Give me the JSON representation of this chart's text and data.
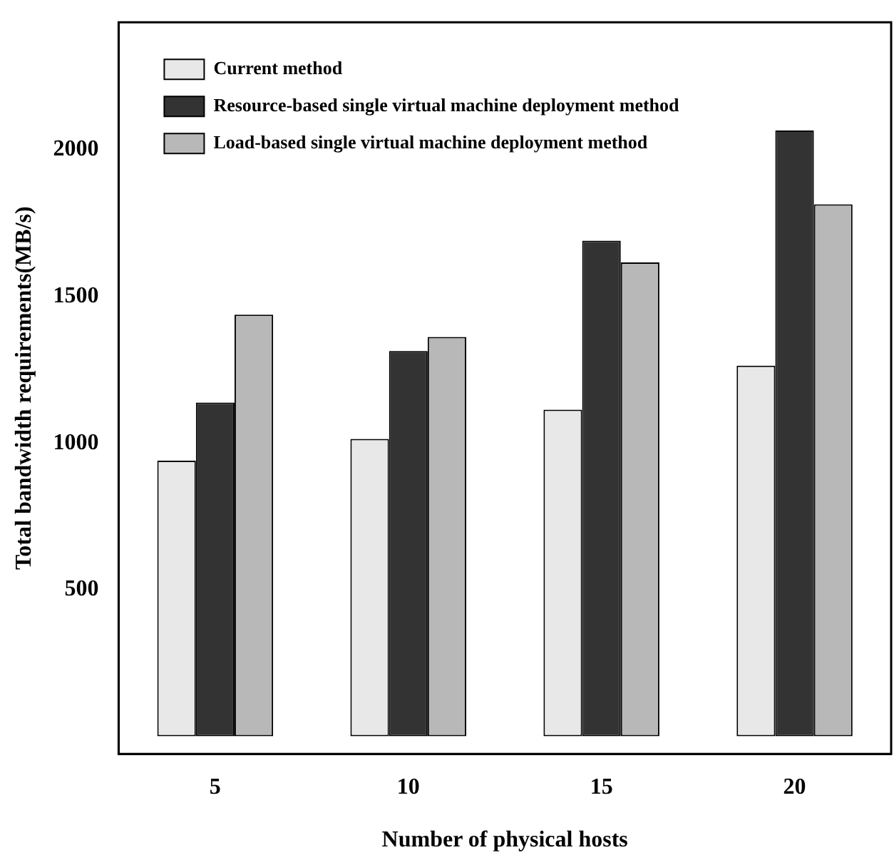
{
  "chart_data": {
    "type": "bar",
    "xlabel": "Number of physical hosts",
    "ylabel": "Total bandwidth requirements(MB/s)",
    "categories": [
      "5",
      "10",
      "15",
      "20"
    ],
    "series": [
      {
        "name": "Current method",
        "color": "#e8e8e8",
        "values": [
          940,
          1014,
          1114,
          1264
        ]
      },
      {
        "name": "Resource-based single virtual machine deployment method",
        "color": "#333333",
        "values": [
          1138,
          1314,
          1690,
          2066
        ]
      },
      {
        "name": "Load-based single virtual machine deployment method",
        "color": "#b8b8b8",
        "values": [
          1438,
          1362,
          1616,
          1814
        ]
      }
    ],
    "ylim": [
      -60,
      2435
    ],
    "yticks": [
      500,
      1000,
      1500,
      2000
    ],
    "grid": false,
    "legend": "top left"
  }
}
